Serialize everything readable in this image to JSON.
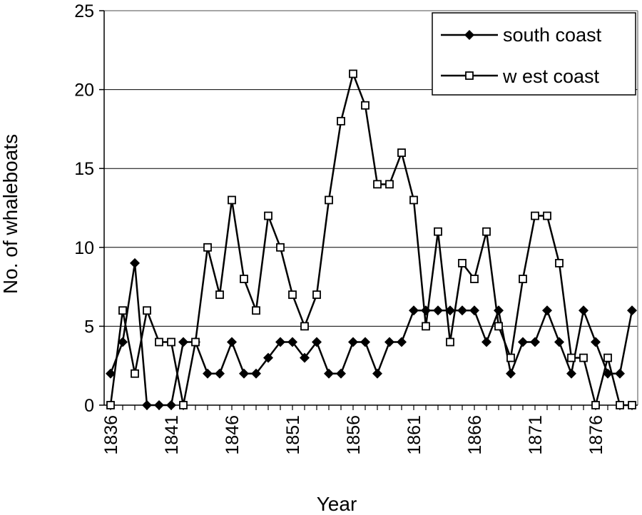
{
  "chart_data": {
    "type": "line",
    "title": "",
    "xlabel": "Year",
    "ylabel": "No. of whaleboats",
    "ylim": [
      0,
      25
    ],
    "yticks": [
      0,
      5,
      10,
      15,
      20,
      25
    ],
    "xticks": [
      1836,
      1841,
      1846,
      1851,
      1856,
      1861,
      1866,
      1871,
      1876
    ],
    "x": [
      1836,
      1837,
      1838,
      1839,
      1840,
      1841,
      1842,
      1843,
      1844,
      1845,
      1846,
      1847,
      1848,
      1849,
      1850,
      1851,
      1852,
      1853,
      1854,
      1855,
      1856,
      1857,
      1858,
      1859,
      1860,
      1861,
      1862,
      1863,
      1864,
      1865,
      1866,
      1867,
      1868,
      1869,
      1870,
      1871,
      1872,
      1873,
      1874,
      1875,
      1876,
      1877,
      1878,
      1879
    ],
    "grid": "horizontal",
    "legend_position": "top-right",
    "series": [
      {
        "name": "south coast",
        "marker": "filled-diamond",
        "values": [
          2,
          4,
          9,
          0,
          0,
          0,
          4,
          4,
          2,
          2,
          4,
          2,
          2,
          3,
          4,
          4,
          3,
          4,
          2,
          2,
          4,
          4,
          2,
          4,
          4,
          6,
          6,
          6,
          6,
          6,
          6,
          4,
          6,
          2,
          4,
          4,
          6,
          4,
          2,
          6,
          4,
          2,
          2,
          6
        ]
      },
      {
        "name": "w est coast",
        "marker": "open-square",
        "values": [
          0,
          6,
          2,
          6,
          4,
          4,
          0,
          4,
          10,
          7,
          13,
          8,
          6,
          12,
          10,
          7,
          5,
          7,
          13,
          18,
          21,
          19,
          14,
          14,
          16,
          13,
          5,
          11,
          4,
          9,
          8,
          11,
          5,
          3,
          8,
          12,
          12,
          9,
          3,
          3,
          0,
          3,
          0,
          0
        ]
      }
    ]
  }
}
